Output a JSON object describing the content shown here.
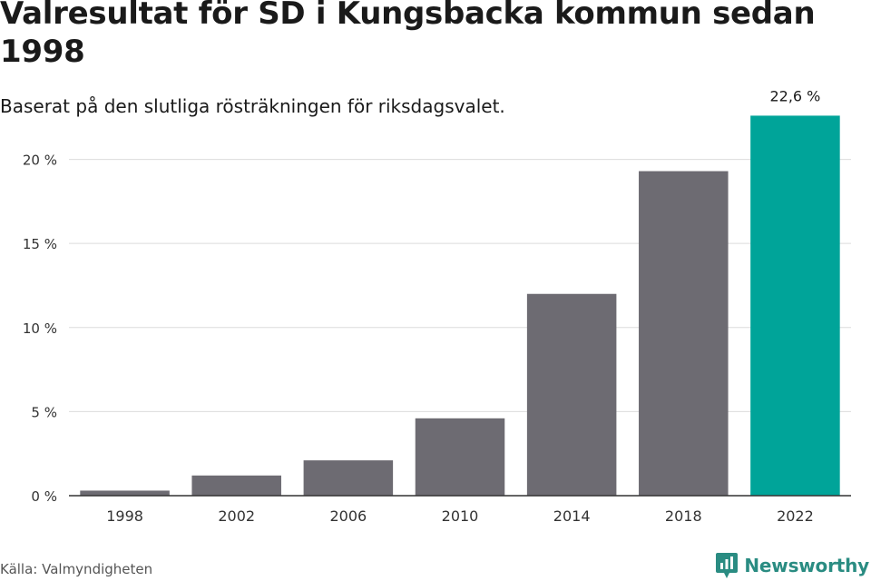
{
  "header": {
    "title": "Valresultat för SD i Kungsbacka kommun sedan 1998",
    "subtitle": "Baserat på den slutliga rösträkningen för riksdagsvalet."
  },
  "footer": {
    "source": "Källa: Valmyndigheten",
    "brand": "Newsworthy",
    "brand_icon": "newsworthy-logo-icon"
  },
  "colors": {
    "bar": "#6d6b72",
    "highlight": "#00a499",
    "grid": "#dcdcdc",
    "axis": "#333333",
    "brand": "#2a8c82"
  },
  "chart_data": {
    "type": "bar",
    "categories": [
      "1998",
      "2002",
      "2006",
      "2010",
      "2014",
      "2018",
      "2022"
    ],
    "values": [
      0.3,
      1.2,
      2.1,
      4.6,
      12.0,
      19.3,
      22.6
    ],
    "ylim": [
      0,
      23
    ],
    "yticks": [
      0,
      5,
      10,
      15,
      20
    ],
    "ytick_labels": [
      "0 %",
      "5 %",
      "10 %",
      "15 %",
      "20 %"
    ],
    "highlight_index": 6,
    "data_labels": [
      null,
      null,
      null,
      null,
      null,
      null,
      "22,6 %"
    ],
    "grid": true,
    "xlabel": "",
    "ylabel": ""
  }
}
